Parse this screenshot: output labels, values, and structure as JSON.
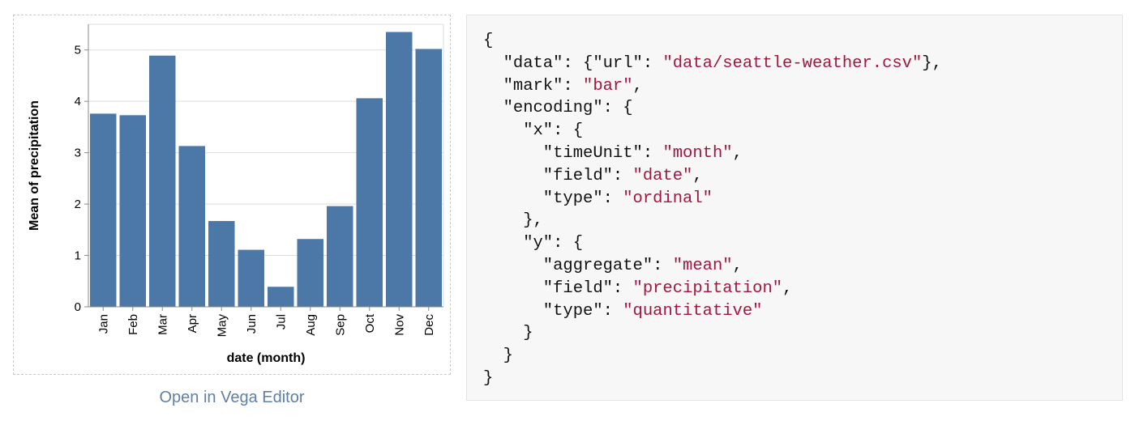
{
  "chart_data": {
    "type": "bar",
    "title": "",
    "xlabel": "date (month)",
    "ylabel": "Mean of precipitation",
    "categories": [
      "Jan",
      "Feb",
      "Mar",
      "Apr",
      "May",
      "Jun",
      "Jul",
      "Aug",
      "Sep",
      "Oct",
      "Nov",
      "Dec"
    ],
    "values": [
      3.76,
      3.73,
      4.89,
      3.13,
      1.67,
      1.11,
      0.39,
      1.32,
      1.96,
      4.06,
      5.35,
      5.02
    ],
    "ylim": [
      0,
      5.5
    ],
    "yticks": [
      0,
      1,
      2,
      3,
      4,
      5
    ],
    "grid": true,
    "bar_color": "#4c78a8"
  },
  "link": {
    "label": "Open in Vega Editor"
  },
  "colors": {
    "string": "#a0183f",
    "link": "#5f7fa6"
  },
  "code_lines": [
    [
      {
        "t": "{"
      }
    ],
    [
      {
        "t": "  \"data\": {\"url\": "
      },
      {
        "t": "\"data/seattle-weather.csv\"",
        "s": true
      },
      {
        "t": "},"
      }
    ],
    [
      {
        "t": "  \"mark\": "
      },
      {
        "t": "\"bar\"",
        "s": true
      },
      {
        "t": ","
      }
    ],
    [
      {
        "t": "  \"encoding\": {"
      }
    ],
    [
      {
        "t": "    \"x\": {"
      }
    ],
    [
      {
        "t": "      \"timeUnit\": "
      },
      {
        "t": "\"month\"",
        "s": true
      },
      {
        "t": ","
      }
    ],
    [
      {
        "t": "      \"field\": "
      },
      {
        "t": "\"date\"",
        "s": true
      },
      {
        "t": ","
      }
    ],
    [
      {
        "t": "      \"type\": "
      },
      {
        "t": "\"ordinal\"",
        "s": true
      }
    ],
    [
      {
        "t": "    },"
      }
    ],
    [
      {
        "t": "    \"y\": {"
      }
    ],
    [
      {
        "t": "      \"aggregate\": "
      },
      {
        "t": "\"mean\"",
        "s": true
      },
      {
        "t": ","
      }
    ],
    [
      {
        "t": "      \"field\": "
      },
      {
        "t": "\"precipitation\"",
        "s": true
      },
      {
        "t": ","
      }
    ],
    [
      {
        "t": "      \"type\": "
      },
      {
        "t": "\"quantitative\"",
        "s": true
      }
    ],
    [
      {
        "t": "    }"
      }
    ],
    [
      {
        "t": "  }"
      }
    ],
    [
      {
        "t": "}"
      }
    ]
  ]
}
